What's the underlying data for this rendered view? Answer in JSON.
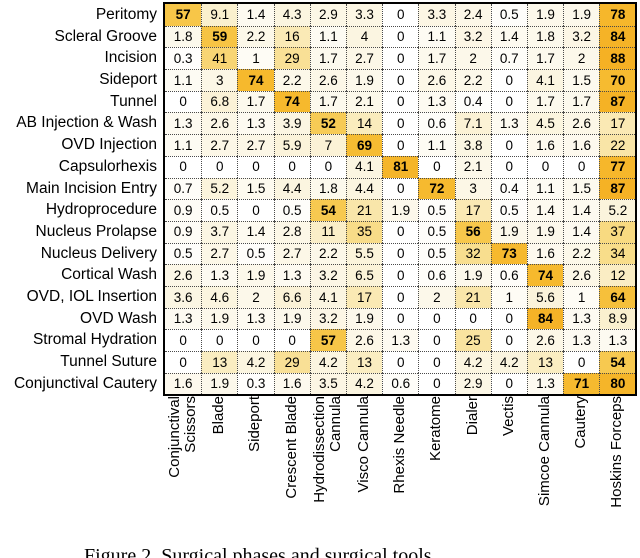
{
  "figure": {
    "caption": "Figure 2. Surgical phases and surgical tools"
  },
  "chart_data": {
    "type": "heatmap",
    "title": "",
    "rows": [
      "Peritomy",
      "Scleral Groove",
      "Incision",
      "Sideport",
      "Tunnel",
      "AB Injection & Wash",
      "OVD Injection",
      "Capsulorhexis",
      "Main Incision Entry",
      "Hydroprocedure",
      "Nucleus Prolapse",
      "Nucleus Delivery",
      "Cortical Wash",
      "OVD, IOL Insertion",
      "OVD Wash",
      "Stromal Hydration",
      "Tunnel Suture",
      "Conjunctival Cautery"
    ],
    "columns": [
      "Conjunctival\nScissors",
      "Blade",
      "Sideport",
      "Crescent Blade",
      "Hydrodissection\nCannula",
      "Visco Cannula",
      "Rhexis Needle",
      "Keratome",
      "Dialer",
      "Vectis",
      "Simcoe Cannula",
      "Cautery",
      "Hoskins Forceps"
    ],
    "values": [
      [
        57,
        9.1,
        1.4,
        4.3,
        2.9,
        3.3,
        0,
        3.3,
        2.4,
        0.5,
        1.9,
        1.9,
        78
      ],
      [
        1.8,
        59,
        2.2,
        16,
        1.1,
        4,
        0,
        1.1,
        3.2,
        1.4,
        1.8,
        3.2,
        84
      ],
      [
        0.3,
        41,
        1,
        29,
        1.7,
        2.7,
        0,
        1.7,
        2,
        0.7,
        1.7,
        2,
        88
      ],
      [
        1.1,
        3,
        74,
        2.2,
        2.6,
        1.9,
        0,
        2.6,
        2.2,
        0,
        4.1,
        1.5,
        70
      ],
      [
        0,
        6.8,
        1.7,
        74,
        1.7,
        2.1,
        0,
        1.3,
        0.4,
        0,
        1.7,
        1.7,
        87
      ],
      [
        1.3,
        2.6,
        1.3,
        3.9,
        52,
        14,
        0,
        0.6,
        7.1,
        1.3,
        4.5,
        2.6,
        17
      ],
      [
        1.1,
        2.7,
        2.7,
        5.9,
        7,
        69,
        0,
        1.1,
        3.8,
        0,
        1.6,
        1.6,
        22
      ],
      [
        0,
        0,
        0,
        0,
        0,
        4.1,
        81,
        0,
        2.1,
        0,
        0,
        0,
        77
      ],
      [
        0.7,
        5.2,
        1.5,
        4.4,
        1.8,
        4.4,
        0,
        72,
        3,
        0.4,
        1.1,
        1.5,
        87
      ],
      [
        0.9,
        0.5,
        0,
        0.5,
        54,
        21,
        1.9,
        0.5,
        17,
        0.5,
        1.4,
        1.4,
        5.2
      ],
      [
        0.9,
        3.7,
        1.4,
        2.8,
        11,
        35,
        0,
        0.5,
        56,
        1.9,
        1.9,
        1.4,
        37
      ],
      [
        0.5,
        2.7,
        0.5,
        2.7,
        2.2,
        5.5,
        0,
        0.5,
        32,
        73,
        1.6,
        2.2,
        34
      ],
      [
        2.6,
        1.3,
        1.9,
        1.3,
        3.2,
        6.5,
        0,
        0.6,
        1.9,
        0.6,
        74,
        2.6,
        12
      ],
      [
        3.6,
        4.6,
        2,
        6.6,
        4.1,
        17,
        0,
        2,
        21,
        1,
        5.6,
        1,
        64
      ],
      [
        1.3,
        1.9,
        1.3,
        1.9,
        3.2,
        1.9,
        0,
        0,
        0,
        0,
        84,
        1.3,
        8.9
      ],
      [
        0,
        0,
        0,
        0,
        57,
        2.6,
        1.3,
        0,
        25,
        0,
        2.6,
        1.3,
        1.3
      ],
      [
        0,
        13,
        4.2,
        29,
        4.2,
        13,
        0,
        0,
        4.2,
        4.2,
        13,
        0,
        54
      ],
      [
        1.6,
        1.9,
        0.3,
        1.6,
        3.5,
        4.2,
        0.6,
        0,
        2.9,
        0,
        1.3,
        71,
        80
      ]
    ],
    "bold_threshold": 50,
    "value_text_color": "#000000",
    "grid_line_color": "#4a4a4a",
    "outer_border_color": "#000000",
    "color_scale": {
      "low": "#FFFFFF",
      "high": "#F5AE1E",
      "stops": [
        [
          0,
          "#FFFFFF"
        ],
        [
          2,
          "#FCF8EA"
        ],
        [
          5,
          "#FBF4DD"
        ],
        [
          10,
          "#FAEFCB"
        ],
        [
          16,
          "#FAEAB6"
        ],
        [
          25,
          "#F9E3A0"
        ],
        [
          35,
          "#F8DC88"
        ],
        [
          45,
          "#F8D167"
        ],
        [
          57,
          "#F7C648"
        ],
        [
          70,
          "#F6BB30"
        ],
        [
          88,
          "#F5B124"
        ],
        [
          100,
          "#F5AE1E"
        ]
      ]
    },
    "legend": "none",
    "layout": "rows = surgical phases (left), columns = surgical tools (bottom, rotated 90deg)"
  }
}
